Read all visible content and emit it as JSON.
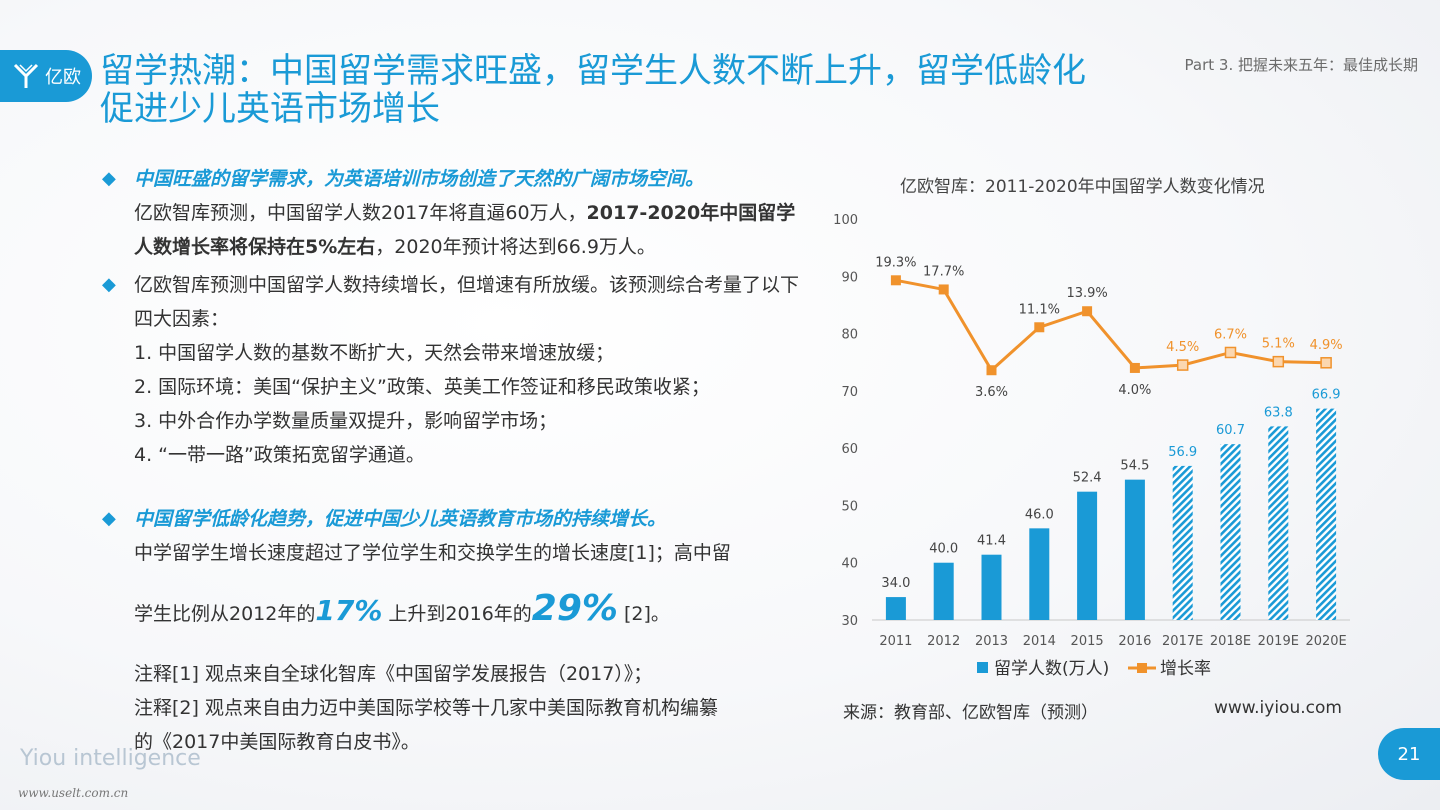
{
  "logo": {
    "text": "亿欧"
  },
  "title": "留学热潮：中国留学需求旺盛，留学生人数不断上升，留学低龄化促进少儿英语市场增长",
  "part": "Part 3. 把握未来五年：最佳成长期",
  "bullet1": {
    "heading": "中国旺盛的留学需求，为英语培训市场创造了天然的广阔市场空间。",
    "text_a": "亿欧智库预测，中国留学人数2017年将直逼60万人，",
    "text_bold": "2017-2020年中国留学人数增长率将保持在5%左右",
    "text_b": "，2020年预计将达到66.9万人。"
  },
  "bullet2": {
    "text": "亿欧智库预测中国留学人数持续增长，但增速有所放缓。该预测综合考量了以下四大因素：",
    "items": [
      "1. 中国留学人数的基数不断扩大，天然会带来增速放缓；",
      "2. 国际环境：美国“保护主义”政策、英美工作签证和移民政策收紧；",
      "3. 中外合作办学数量质量双提升，影响留学市场；",
      "4. “一带一路”政策拓宽留学通道。"
    ]
  },
  "bullet3": {
    "heading": "中国留学低龄化趋势，促进中国少儿英语教育市场的持续增长。",
    "line1": "中学留学生增长速度超过了学位学生和交换学生的增长速度[1]；高中留",
    "line2_a": "学生比例从2012年的",
    "pct1": "17%",
    "line2_b": " 上升到2016年的",
    "pct2": "29%",
    "line2_c": " [2]。"
  },
  "notes": [
    "注释[1] 观点来自全球化智库《中国留学发展报告（2017）》；",
    "注释[2] 观点来自由力迈中美国际学校等十几家中美国际教育机构编纂",
    "的《2017中美国际教育白皮书》。"
  ],
  "footer": {
    "brand": "Yiou intelligence",
    "watermark": "www.uselt.com.cn",
    "page": "21"
  },
  "chart_title": "亿欧智库：2011-2020年中国留学人数变化情况",
  "source": "来源：教育部、亿欧智库（预测）",
  "url": "www.iyiou.com",
  "colors": {
    "accent": "#1a9ad6",
    "line": "#f0922c"
  },
  "chart_data": {
    "type": "bar",
    "categories": [
      "2011",
      "2012",
      "2013",
      "2014",
      "2015",
      "2016",
      "2017E",
      "2018E",
      "2019E",
      "2020E"
    ],
    "forecast_from_index": 6,
    "ylim": [
      30,
      100
    ],
    "yticks": [
      30,
      40,
      50,
      60,
      70,
      80,
      90,
      100
    ],
    "series": [
      {
        "name": "留学人数(万人)",
        "kind": "bar",
        "values": [
          34.0,
          40.0,
          41.4,
          46.0,
          52.4,
          54.5,
          56.9,
          60.7,
          63.8,
          66.9
        ]
      },
      {
        "name": "增长率",
        "kind": "line",
        "values": [
          19.3,
          17.7,
          3.6,
          11.1,
          13.9,
          4.0,
          4.5,
          6.7,
          5.1,
          4.9
        ]
      }
    ],
    "grid": false,
    "legend": "bottom"
  }
}
